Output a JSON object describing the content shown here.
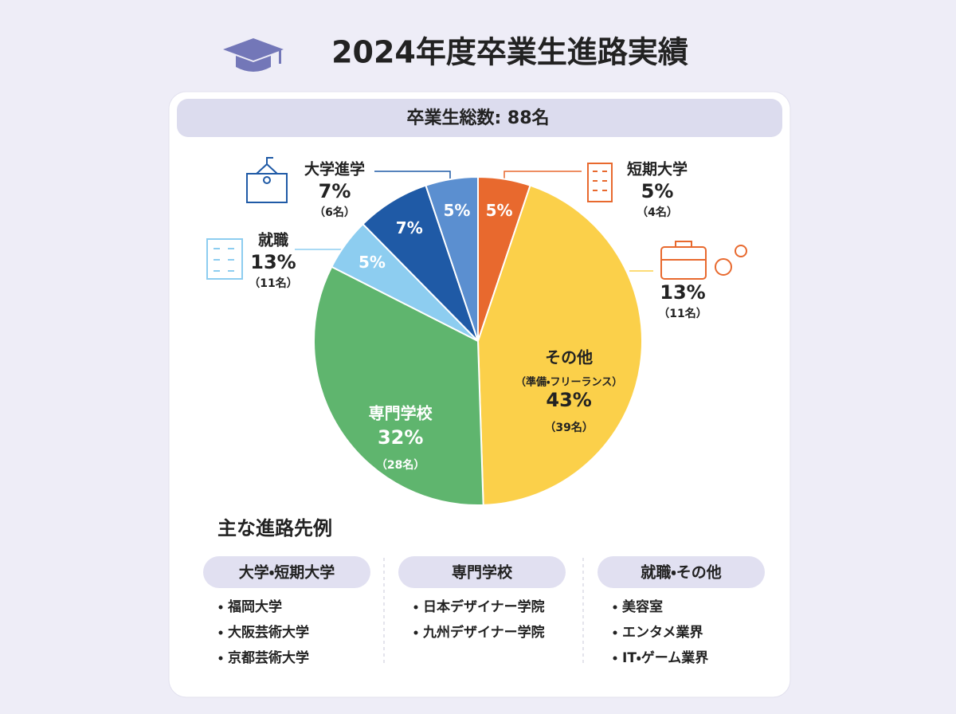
{
  "title": "2024年度卒業生進路実績",
  "total": "卒業生総数: 88名",
  "chart_data": {
    "type": "pie",
    "values": [
      5,
      43,
      32,
      5,
      7,
      5
    ],
    "value_labels": [
      "5%",
      "43%",
      "32%",
      "5%",
      "7%",
      "5%"
    ],
    "categories": [
      null,
      "その他",
      "専門学校",
      null,
      null,
      null
    ],
    "notes": [
      null,
      "（準備・フリーランス）",
      null,
      null,
      null,
      null
    ],
    "counts": [
      null,
      "（39名）",
      "（28名）",
      null,
      null,
      null
    ],
    "colors": [
      "#e8692e",
      "#fbd04a",
      "#5fb56e",
      "#8dcdf0",
      "#1f5aa6",
      "#5b8fd0"
    ]
  },
  "callouts": [
    {
      "label": "大学進学",
      "value_label": "7%",
      "count": "（6名）"
    },
    {
      "label": "短期大学",
      "value_label": "5%",
      "count": "（4名）"
    },
    {
      "label": "就職",
      "value_label": "13%",
      "count": "（11名）"
    },
    {
      "value_label": "13%",
      "count": "（11名）"
    }
  ],
  "examples": {
    "title": "主な進路先例",
    "columns": [
      {
        "heading": "大学・短期大学",
        "items": [
          "福岡大学",
          "大阪芸術大学",
          "京都芸術大学"
        ]
      },
      {
        "heading": "専門学校",
        "items": [
          "日本デザイナー学院",
          "九州デザイナー学院"
        ]
      },
      {
        "heading": "就職・その他",
        "items": [
          "美容室",
          "エンタメ業界",
          "IT・ゲーム業界"
        ]
      }
    ]
  }
}
